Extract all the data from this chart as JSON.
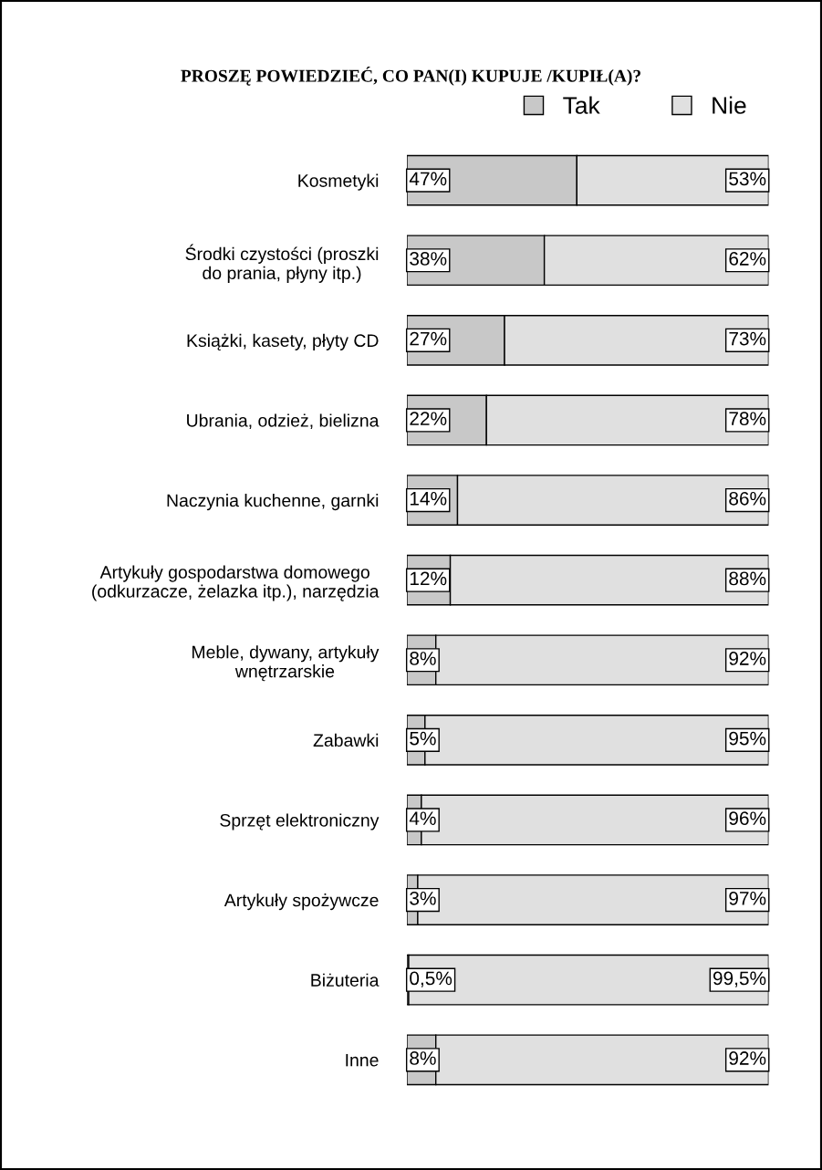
{
  "chart_data": {
    "type": "bar",
    "orientation": "horizontal",
    "stacked": true,
    "title": "PROSZĘ POWIEDZIEĆ, CO PAN(I) KUPUJE /KUPIŁ(A)?",
    "categories": [
      "Kosmetyki",
      "Środki czystości (proszki\ndo prania, płyny itp.)",
      "Książki, kasety, płyty CD",
      "Ubrania, odzież, bielizna",
      "Naczynia kuchenne, garnki",
      "Artykuły gospodarstwa domowego\n(odkurzacze, żelazka itp.), narzędzia",
      "Meble, dywany, artykuły\nwnętrzarskie",
      "Zabawki",
      "Sprzęt elektroniczny",
      "Artykuły spożywcze",
      "Biżuteria",
      "Inne"
    ],
    "series": [
      {
        "name": "Tak",
        "color": "#c8c8c8",
        "values": [
          47,
          38,
          27,
          22,
          14,
          12,
          8,
          5,
          4,
          3,
          0.5,
          8
        ],
        "value_labels": [
          "47%",
          "38%",
          "27%",
          "22%",
          "14%",
          "12%",
          "8%",
          "5%",
          "4%",
          "3%",
          "0,5%",
          "8%"
        ]
      },
      {
        "name": "Nie",
        "color": "#e0e0e0",
        "values": [
          53,
          62,
          73,
          78,
          86,
          88,
          92,
          95,
          96,
          97,
          99.5,
          92
        ],
        "value_labels": [
          "53%",
          "62%",
          "73%",
          "78%",
          "86%",
          "88%",
          "92%",
          "95%",
          "96%",
          "97%",
          "99,5%",
          "92%"
        ]
      }
    ],
    "legend": "top",
    "grid": false,
    "tick_labels": "y"
  }
}
